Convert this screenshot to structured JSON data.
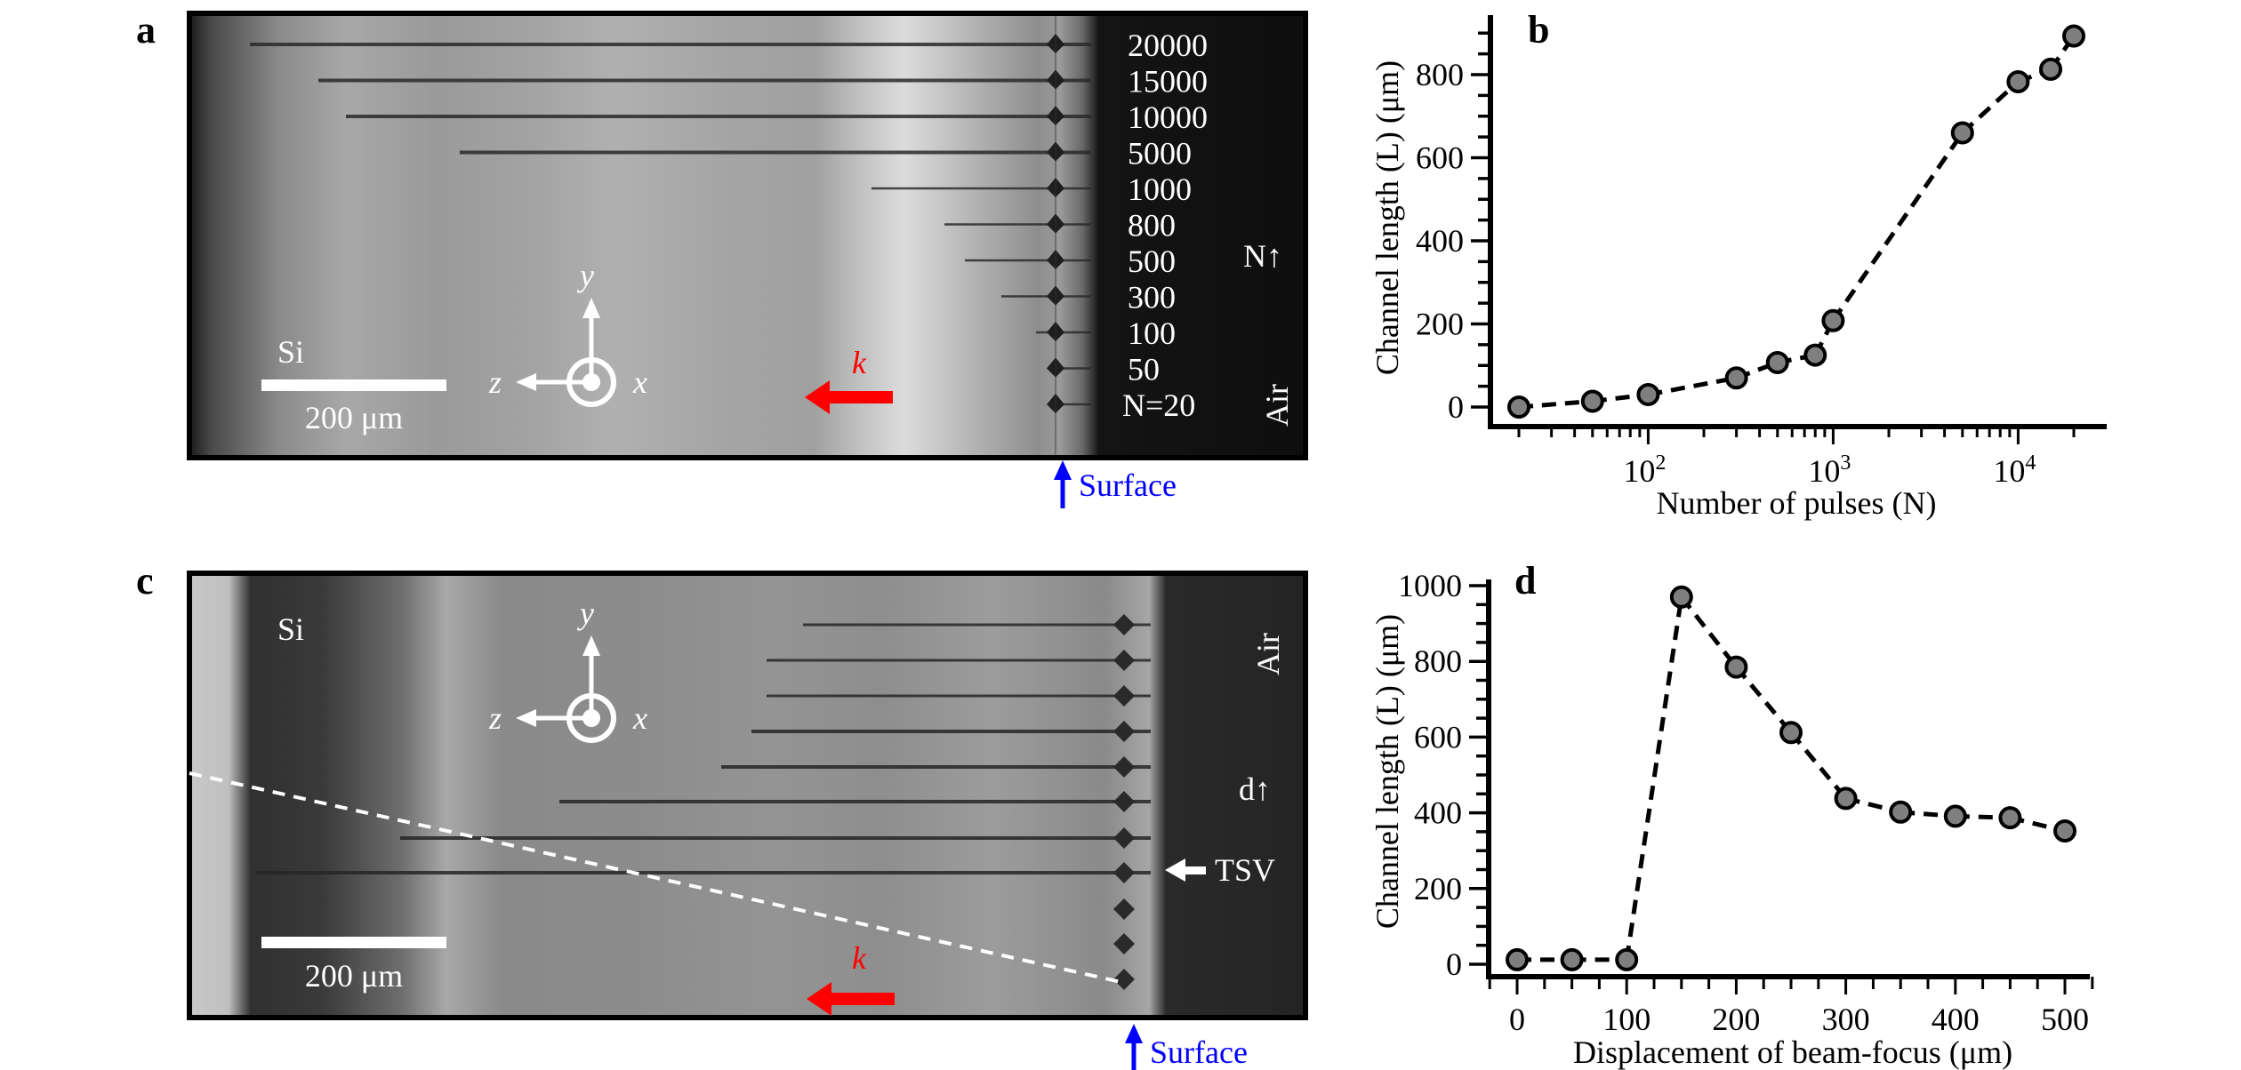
{
  "figure": {
    "panel_letters": [
      "a",
      "b",
      "c",
      "d"
    ],
    "colors": {
      "surface_arrow": "#0000ff",
      "k_arrow": "#ff0000",
      "marker_fill": "#7f7f7f",
      "marker_edge": "#000000",
      "image_overlay_text": "#ffffff"
    }
  },
  "panel_a": {
    "material_label": "Si",
    "scale_bar_label": "200 μm",
    "medium_label": "Air",
    "direction_label": "N↑",
    "surface_label": "Surface",
    "k_label": "k",
    "axes": {
      "y": "y",
      "z": "z",
      "x": "x"
    },
    "pulse_labels": [
      "20000",
      "15000",
      "10000",
      "5000",
      "1000",
      "800",
      "500",
      "300",
      "100",
      "50",
      "N=20"
    ]
  },
  "panel_c": {
    "material_label": "Si",
    "scale_bar_label": "200 μm",
    "medium_label": "Air",
    "direction_label": "d↑",
    "tsv_label": "TSV",
    "surface_label": "Surface",
    "k_label": "k",
    "axes": {
      "y": "y",
      "z": "z",
      "x": "x"
    }
  },
  "chart_data": [
    {
      "panel": "b",
      "type": "line",
      "title": "",
      "xlabel": "Number of pulses (N)",
      "ylabel": "Channel length (L) (μm)",
      "xscale": "log",
      "xlim": [
        15,
        30000
      ],
      "ylim": [
        -50,
        930
      ],
      "x_ticks": [
        100,
        1000,
        10000
      ],
      "x_tick_labels": [
        {
          "base": "10",
          "exp": "2"
        },
        {
          "base": "10",
          "exp": "3"
        },
        {
          "base": "10",
          "exp": "4"
        }
      ],
      "y_ticks": [
        0,
        200,
        400,
        600,
        800
      ],
      "y_tick_labels": [
        "0",
        "200",
        "400",
        "600",
        "800"
      ],
      "y_minor_step": 50,
      "line_style": "dashed",
      "marker": "circle",
      "legend": "none",
      "grid": false,
      "x": [
        20,
        50,
        100,
        300,
        500,
        800,
        1000,
        5000,
        10000,
        15000,
        20000
      ],
      "y": [
        0,
        14,
        30,
        70,
        107,
        125,
        208,
        660,
        783,
        813,
        893
      ]
    },
    {
      "panel": "d",
      "type": "line",
      "title": "",
      "xlabel": "Displacement of beam-focus (μm)",
      "ylabel": "Channel length (L) (μm)",
      "xscale": "linear",
      "xlim": [
        -20,
        525
      ],
      "ylim": [
        -50,
        1030
      ],
      "x_ticks": [
        0,
        100,
        200,
        300,
        400,
        500
      ],
      "x_tick_labels": [
        "0",
        "100",
        "200",
        "300",
        "400",
        "500"
      ],
      "x_minor_step": 25,
      "y_ticks": [
        0,
        200,
        400,
        600,
        800,
        1000
      ],
      "y_tick_labels": [
        "0",
        "200",
        "400",
        "600",
        "800",
        "1000"
      ],
      "y_minor_step": 50,
      "line_style": "dashed",
      "marker": "circle",
      "legend": "none",
      "grid": false,
      "x": [
        0,
        50,
        100,
        150,
        200,
        250,
        300,
        350,
        400,
        450,
        500
      ],
      "y": [
        12,
        12,
        12,
        970,
        785,
        612,
        438,
        402,
        391,
        387,
        352
      ]
    }
  ]
}
